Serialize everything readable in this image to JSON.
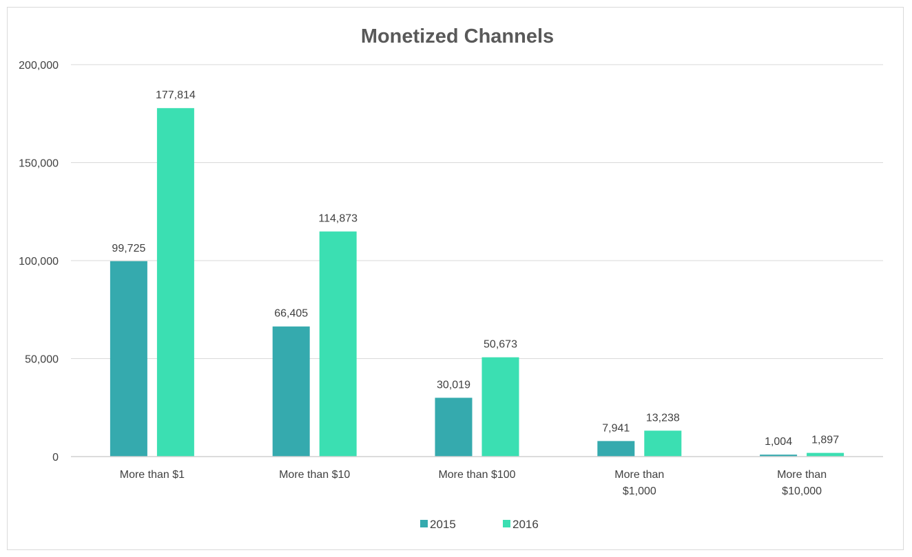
{
  "chart_data": {
    "type": "bar",
    "title": "Monetized Channels",
    "categories": [
      [
        "More than $1"
      ],
      [
        "More than $10"
      ],
      [
        "More than $100"
      ],
      [
        "More than",
        "$1,000"
      ],
      [
        "More than",
        "$10,000"
      ]
    ],
    "series": [
      {
        "name": "2015",
        "color": "#35AAAE",
        "values": [
          99725,
          66405,
          30019,
          7941,
          1004
        ],
        "labels": [
          "99,725",
          "66,405",
          "30,019",
          "7,941",
          "1,004"
        ]
      },
      {
        "name": "2016",
        "color": "#3BDFB2",
        "values": [
          177814,
          114873,
          50673,
          13238,
          1897
        ],
        "labels": [
          "177,814",
          "114,873",
          "50,673",
          "13,238",
          "1,897"
        ]
      }
    ],
    "ylim": [
      0,
      200000
    ],
    "yticks": [
      0,
      50000,
      100000,
      150000,
      200000
    ],
    "ytick_labels": [
      "0",
      "50,000",
      "100,000",
      "150,000",
      "200,000"
    ],
    "xlabel": "",
    "ylabel": "",
    "grid": true,
    "legend": "bottom-center"
  }
}
